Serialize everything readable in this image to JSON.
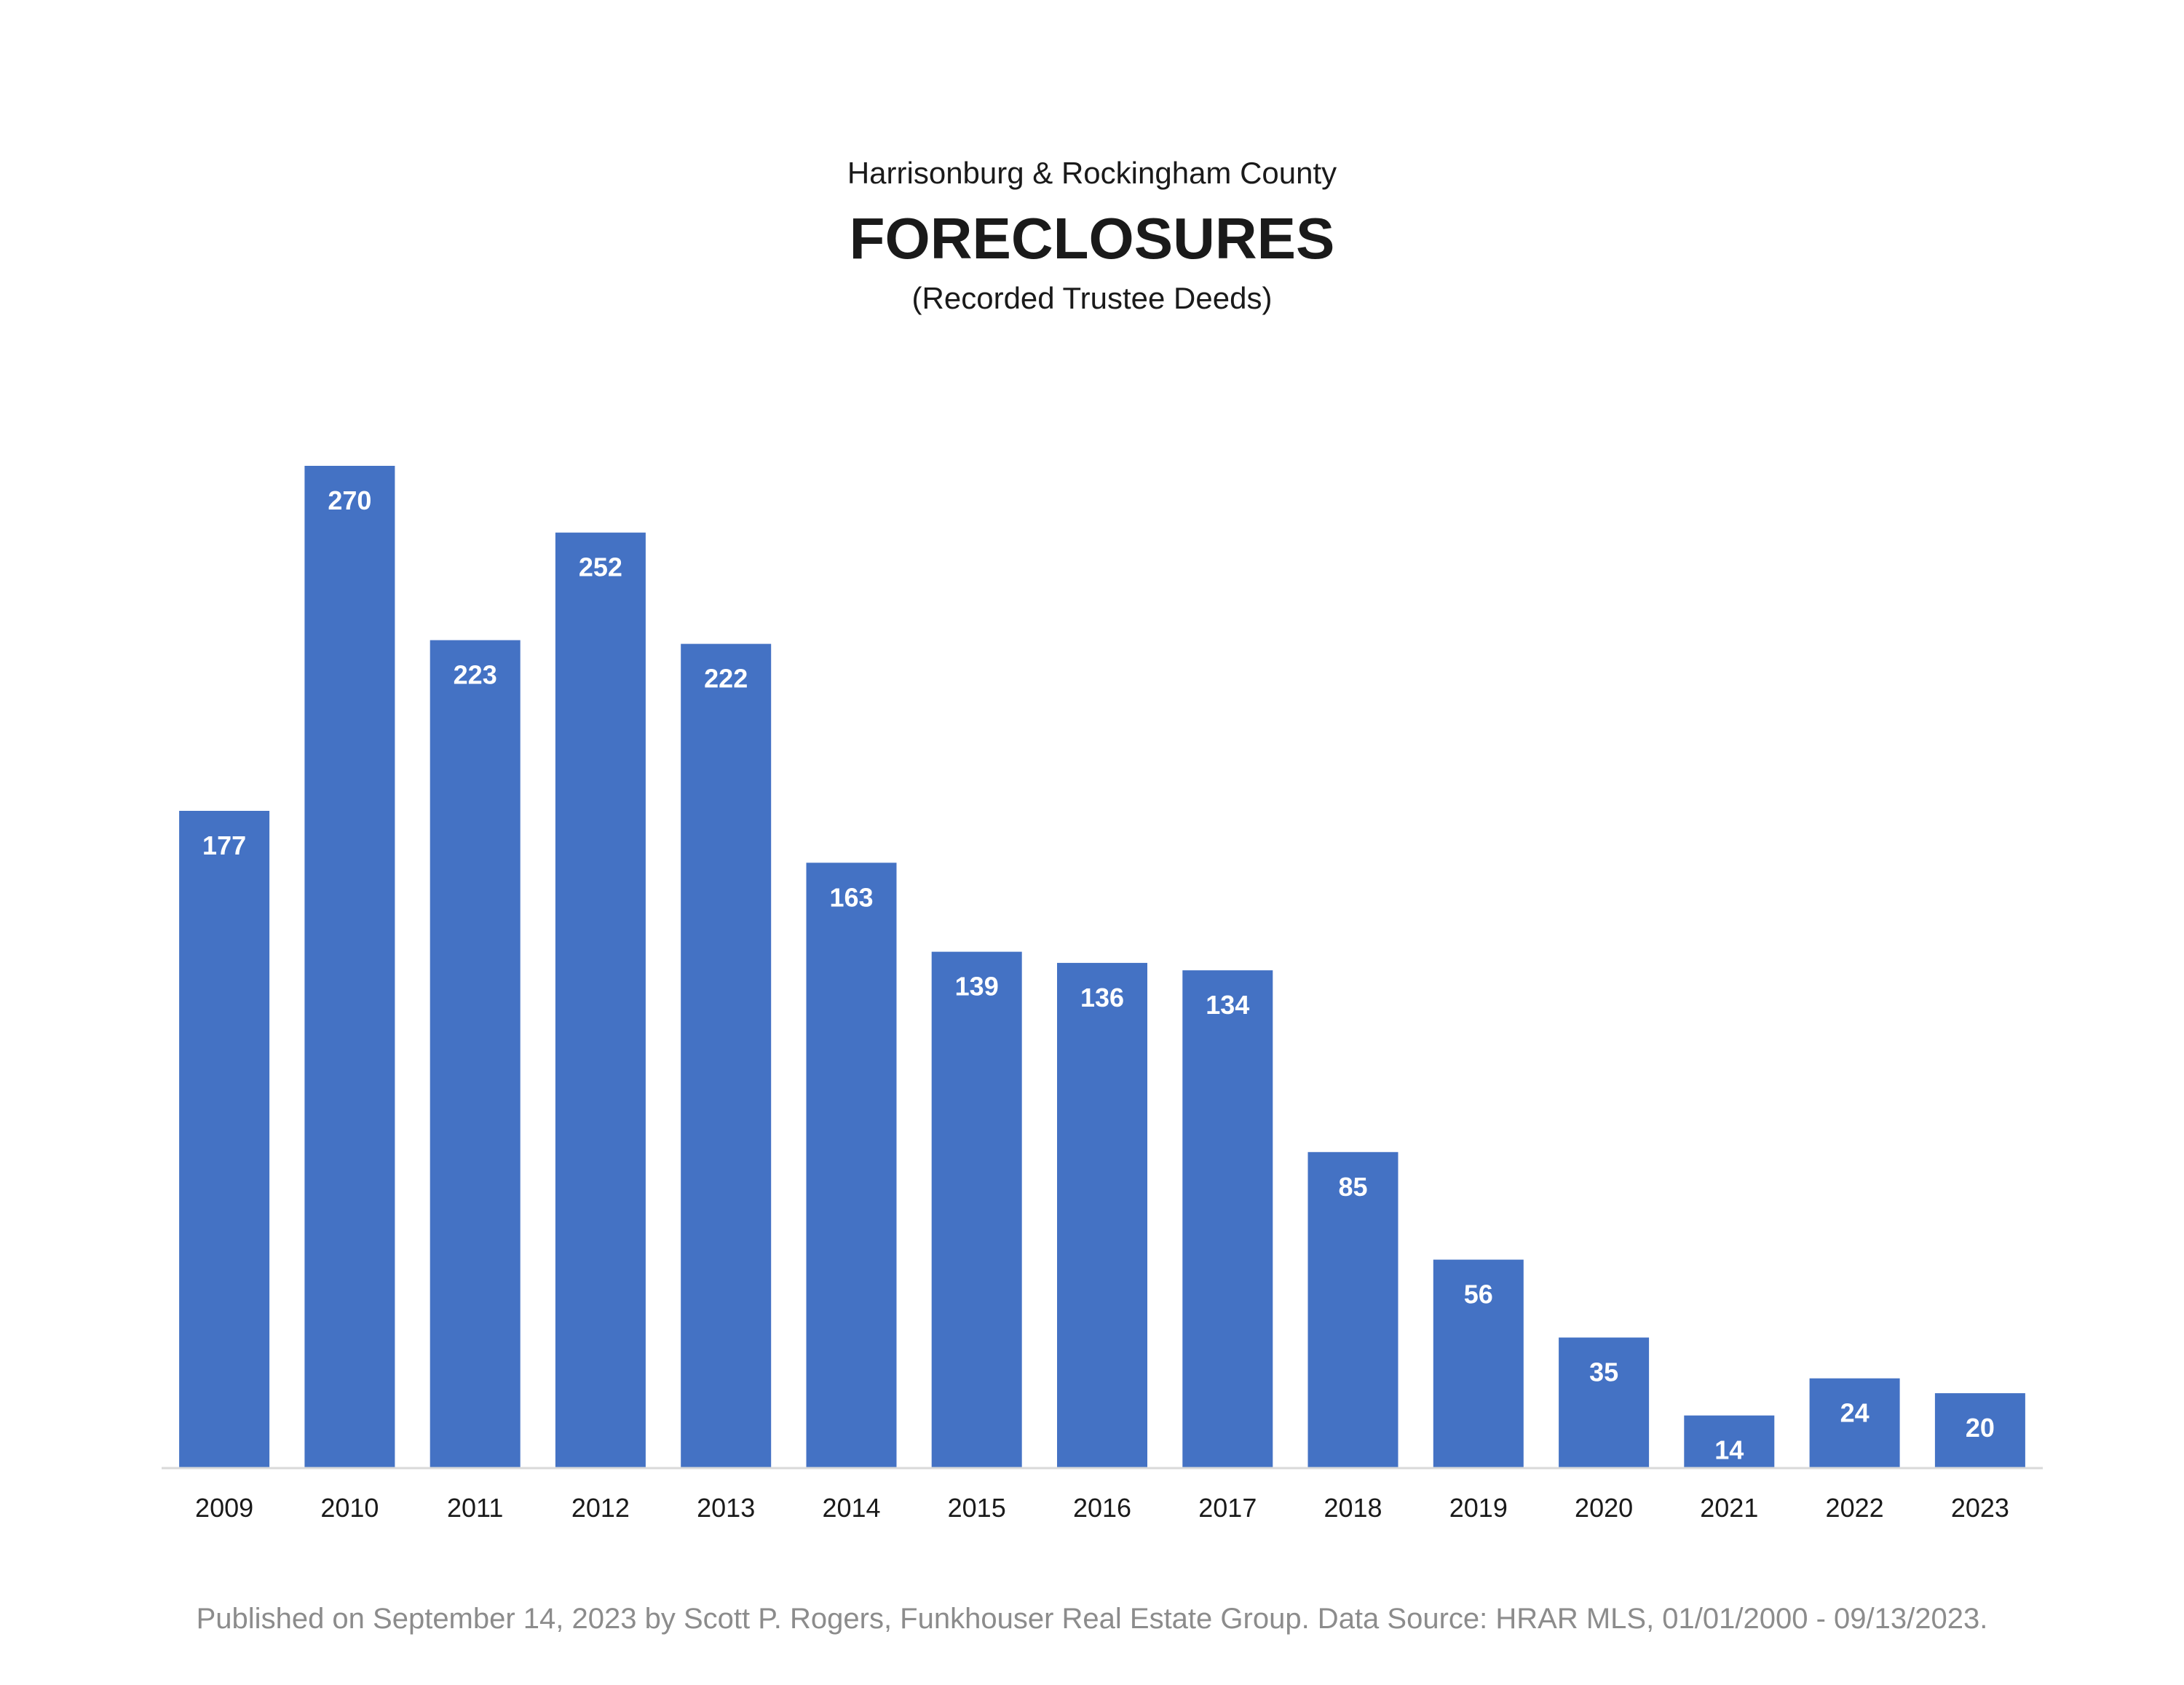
{
  "header": {
    "subtitle_top": "Harrisonburg & Rockingham County",
    "title": "FORECLOSURES",
    "subtitle_bottom": "(Recorded Trustee Deeds)"
  },
  "chart_data": {
    "type": "bar",
    "title": "FORECLOSURES",
    "subtitle": "Harrisonburg & Rockingham County",
    "caption": "(Recorded Trustee Deeds)",
    "xlabel": "",
    "ylabel": "",
    "categories": [
      "2009",
      "2010",
      "2011",
      "2012",
      "2013",
      "2014",
      "2015",
      "2016",
      "2017",
      "2018",
      "2019",
      "2020",
      "2021",
      "2022",
      "2023"
    ],
    "values": [
      177,
      270,
      223,
      252,
      222,
      163,
      139,
      136,
      134,
      85,
      56,
      35,
      14,
      24,
      20
    ],
    "data_labels": [
      "177",
      "270",
      "223",
      "252",
      "222",
      "163",
      "139",
      "136",
      "134",
      "85",
      "56",
      "35",
      "14",
      "24",
      "20"
    ],
    "ylim": [
      0,
      270
    ],
    "grid": false,
    "legend": "none",
    "bar_color": "#4472C4",
    "label_color": "#FFFFFF"
  },
  "footer": {
    "text": "Published on September 14, 2023 by Scott P. Rogers, Funkhouser Real Estate Group. Data Source: HRAR MLS, 01/01/2000 - 09/13/2023."
  }
}
